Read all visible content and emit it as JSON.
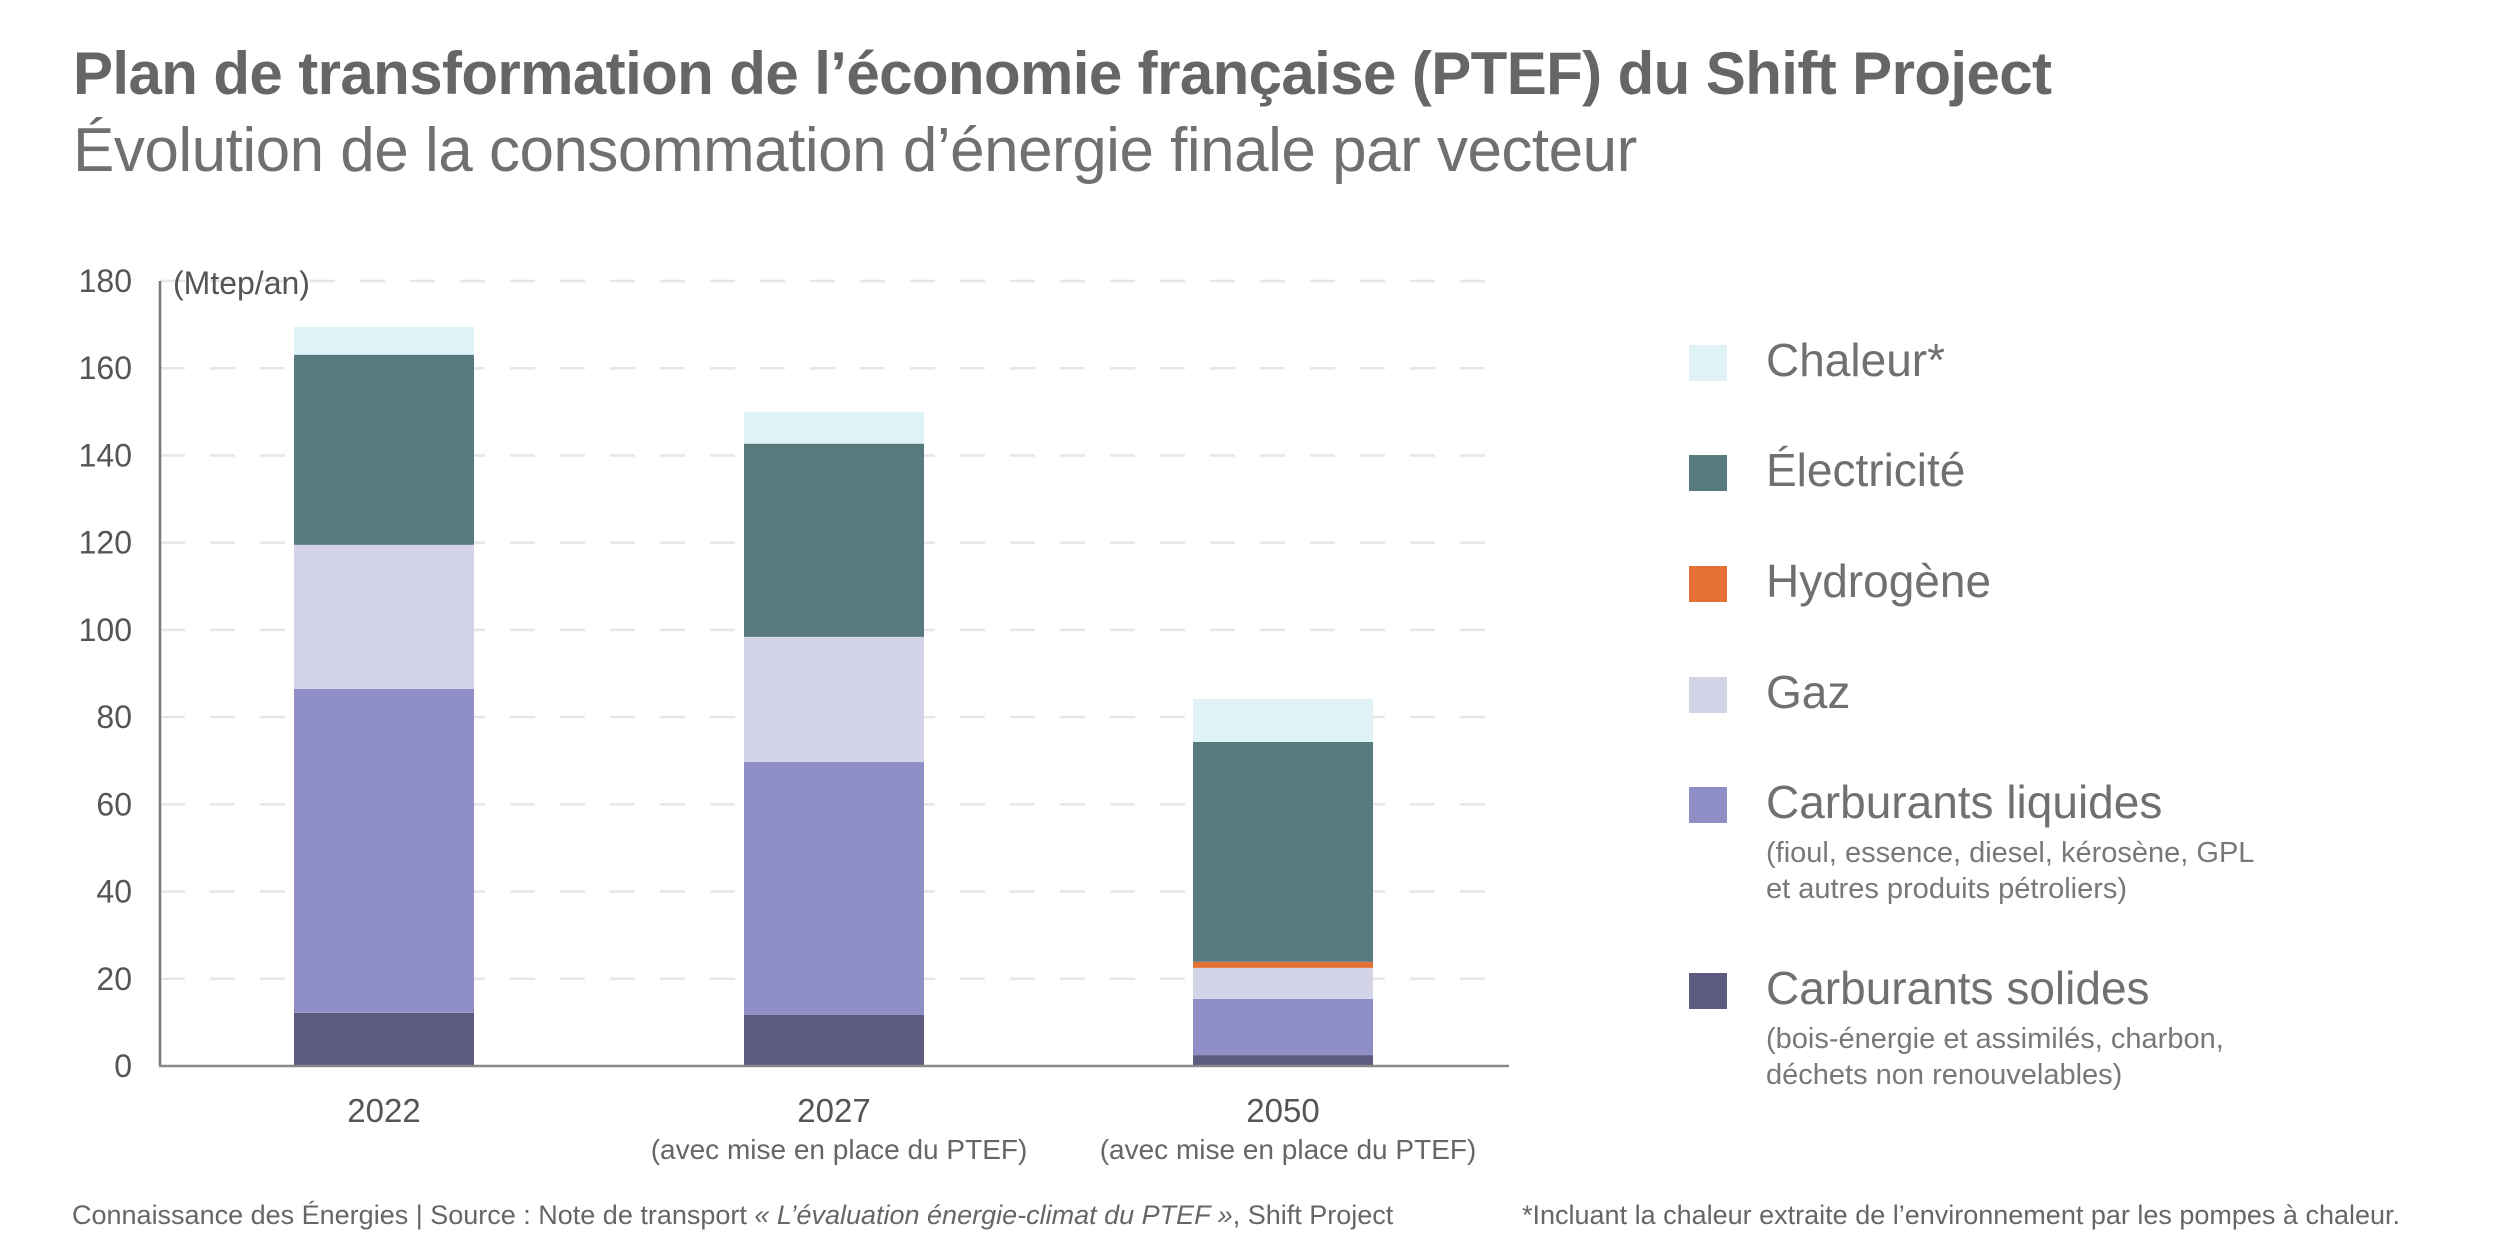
{
  "header": {
    "title": "Plan de transformation de l’économie française (PTEF) du Shift Project",
    "subtitle": "Évolution de la consommation d’énergie finale par vecteur"
  },
  "chart_data": {
    "type": "bar",
    "stacked": true,
    "title": "Plan de transformation de l’économie française (PTEF) du Shift Project",
    "subtitle": "Évolution de la consommation d’énergie finale par vecteur",
    "xlabel": "",
    "ylabel": "(Mtep/an)",
    "ylim": [
      0,
      180
    ],
    "yticks": [
      0,
      20,
      40,
      60,
      80,
      100,
      120,
      140,
      160,
      180
    ],
    "grid": true,
    "legend_position": "right",
    "categories": [
      "2022",
      "2027",
      "2050"
    ],
    "category_sublabels": [
      "",
      "(avec mise en place du PTEF)",
      "(avec mise en place du PTEF)"
    ],
    "series": [
      {
        "name": "Carburants solides",
        "color": "#5c5a7f",
        "values": [
          12.2,
          11.7,
          2.5
        ]
      },
      {
        "name": "Carburants liquides",
        "color": "#8f8ec7",
        "values": [
          74.3,
          58.0,
          12.9
        ]
      },
      {
        "name": "Gaz",
        "color": "#d4d4e9",
        "values": [
          33.0,
          28.7,
          7.1
        ]
      },
      {
        "name": "Hydrogène",
        "color": "#e57035",
        "values": [
          0.0,
          0.0,
          1.4
        ]
      },
      {
        "name": "Électricité",
        "color": "#577a7e",
        "values": [
          43.6,
          44.3,
          50.4
        ]
      },
      {
        "name": "Chaleur*",
        "color": "#dff3f6",
        "values": [
          6.4,
          7.3,
          9.9
        ]
      }
    ],
    "totals": [
      169.5,
      150.0,
      84.2
    ]
  },
  "legend": {
    "items": [
      {
        "label": "Chaleur*",
        "sub": [],
        "color": "#dff3f6"
      },
      {
        "label": "Électricité",
        "sub": [],
        "color": "#577a7e"
      },
      {
        "label": "Hydrogène",
        "sub": [],
        "color": "#e57035"
      },
      {
        "label": "Gaz",
        "sub": [],
        "color": "#d4d4e9"
      },
      {
        "label": "Carburants liquides",
        "sub": [
          "(fioul, essence, diesel, kérosène, GPL",
          "et autres produits pétroliers)"
        ],
        "color": "#8f8ec7"
      },
      {
        "label": "Carburants solides",
        "sub": [
          "(bois-énergie et assimilés, charbon,",
          "déchets non renouvelables)"
        ],
        "color": "#5c5a7f"
      }
    ]
  },
  "footer": {
    "source_prefix": "Connaissance des Énergies | Source :  Note de transport ",
    "source_italic": "« L’évaluation énergie-climat du PTEF »",
    "source_suffix": ", Shift Project",
    "footnote": "*Incluant la chaleur extraite de l’environnement par les pompes à chaleur."
  }
}
